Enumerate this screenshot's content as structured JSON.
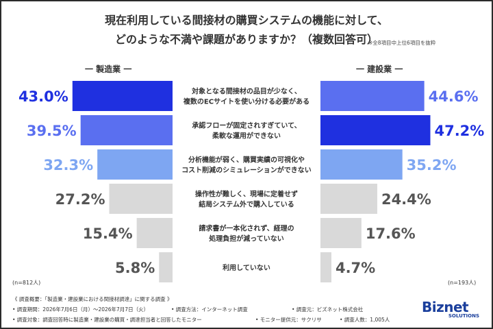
{
  "title_line1": "現在利用している間接材の購買システムの機能に対して、",
  "title_line2": "どのような不満や課題がありますか？（複数回答可）",
  "note": "※全8項目中上位6項目を抜粋",
  "colors": {
    "dark_blue": "#1f30e0",
    "mid_blue": "#5a6ff0",
    "light_blue": "#7ea6f2",
    "gray": "#d9d9d9",
    "gray_text": "#555555"
  },
  "chart_data": {
    "type": "bar",
    "orientation": "horizontal-butterfly",
    "categories": [
      [
        "対象となる間接材の品目が少なく、",
        "複数のECサイトを使い分ける必要がある"
      ],
      [
        "承認フローが固定されすぎていて、",
        "柔軟な運用ができない"
      ],
      [
        "分析機能が弱く、購買実績の可視化や",
        "コスト削減のシミュレーションができない"
      ],
      [
        "操作性が難しく、現場に定着せず",
        "結局システム外で購入している"
      ],
      [
        "請求書が一本化されず、経理の",
        "処理負担が減っていない"
      ],
      [
        "利用していない"
      ]
    ],
    "series": [
      {
        "name": "一 製造業 一",
        "values": [
          43.0,
          39.5,
          32.3,
          27.2,
          15.4,
          5.8
        ],
        "labels": [
          "43.0%",
          "39.5%",
          "32.3%",
          "27.2%",
          "15.4%",
          "5.8%"
        ],
        "colors": [
          "dark_blue",
          "mid_blue",
          "light_blue",
          "gray",
          "gray",
          "gray"
        ],
        "n": "(n=812人)"
      },
      {
        "name": "一 建設業 一",
        "values": [
          44.6,
          47.2,
          35.2,
          24.4,
          17.6,
          4.7
        ],
        "labels": [
          "44.6%",
          "47.2%",
          "35.2%",
          "24.4%",
          "17.6%",
          "4.7%"
        ],
        "colors": [
          "mid_blue",
          "dark_blue",
          "light_blue",
          "gray",
          "gray",
          "gray"
        ],
        "n": "(n=193人)"
      }
    ],
    "xlim": [
      0,
      50
    ]
  },
  "footer": {
    "line1": "《 調査概要：「製造業・建設業における間接材調達」に関する調査 》",
    "period": "• 調査期間：2026年7月6日（月）～2026年7月7日（火）",
    "method": "• 調査方法：インターネット調査",
    "agency": "• 調査元：ビズネット株式会社",
    "target": "• 調査対象：調査回答時に製造業・建設業の購買・調達担当者と回答したモニター",
    "provider": "• モニター提供元：サクリサ",
    "count": "• 調査人数：1,005人"
  },
  "logo": {
    "name": "Biznet",
    "sub": "SOLUTIONS"
  }
}
